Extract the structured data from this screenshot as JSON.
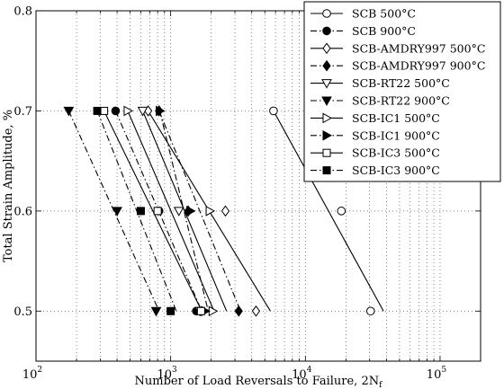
{
  "chart_data": {
    "type": "line",
    "x_scale": "log",
    "xlabel": "Number of Load Reversals to Failure, 2N",
    "xlabel_subscript": "f",
    "ylabel": "Total Strain Amplitude, %",
    "xlim": [
      100,
      200000
    ],
    "ylim": [
      0.45,
      0.8
    ],
    "x_ticks": [
      100,
      1000,
      10000,
      100000
    ],
    "x_tick_labels": [
      {
        "base": "10",
        "exp": "2"
      },
      {
        "base": "10",
        "exp": "3"
      },
      {
        "base": "10",
        "exp": "4"
      },
      {
        "base": "10",
        "exp": "5"
      }
    ],
    "y_ticks": [
      0.5,
      0.6,
      0.7,
      0.8
    ],
    "y_tick_labels": [
      "0.5",
      "0.6",
      "0.7",
      "0.8"
    ],
    "grid": "dotted, major and minor on x; major on y",
    "legend_position": "top-right",
    "series": [
      {
        "name": "SCB 500°C",
        "marker": "circle-open",
        "line": "solid",
        "points": [
          [
            5800,
            0.7
          ],
          [
            18500,
            0.6
          ],
          [
            30500,
            0.5
          ]
        ],
        "fit": [
          [
            5800,
            0.7
          ],
          [
            38000,
            0.5
          ]
        ]
      },
      {
        "name": "SCB 900°C",
        "marker": "circle-filled",
        "line": "dashdot",
        "points": [
          [
            390,
            0.7
          ],
          [
            820,
            0.6
          ],
          [
            1550,
            0.5
          ]
        ],
        "fit": [
          [
            390,
            0.7
          ],
          [
            1700,
            0.5
          ]
        ]
      },
      {
        "name": "SCB-AMDRY997 500°C",
        "marker": "diamond-open",
        "line": "solid",
        "points": [
          [
            680,
            0.7
          ],
          [
            2550,
            0.6
          ],
          [
            4300,
            0.5
          ]
        ],
        "fit": [
          [
            680,
            0.7
          ],
          [
            5500,
            0.5
          ]
        ]
      },
      {
        "name": "SCB-AMDRY997 900°C",
        "marker": "diamond-filled",
        "line": "dashdot",
        "points": [
          [
            820,
            0.7
          ],
          [
            1350,
            0.6
          ],
          [
            3200,
            0.5
          ]
        ],
        "fit": [
          [
            820,
            0.7
          ],
          [
            3300,
            0.5
          ]
        ]
      },
      {
        "name": "SCB-RT22 500°C",
        "marker": "triangle-down-open",
        "line": "solid",
        "points": [
          [
            620,
            0.7
          ],
          [
            1150,
            0.6
          ],
          [
            1650,
            0.5
          ]
        ],
        "fit": [
          [
            620,
            0.7
          ],
          [
            2600,
            0.5
          ]
        ]
      },
      {
        "name": "SCB-RT22 900°C",
        "marker": "triangle-down-filled",
        "line": "dashdot",
        "points": [
          [
            175,
            0.7
          ],
          [
            400,
            0.6
          ],
          [
            780,
            0.5
          ]
        ],
        "fit": [
          [
            175,
            0.7
          ],
          [
            820,
            0.5
          ]
        ]
      },
      {
        "name": "SCB-IC1 500°C",
        "marker": "triangle-right-open",
        "line": "solid",
        "points": [
          [
            480,
            0.7
          ],
          [
            1950,
            0.6
          ],
          [
            2050,
            0.5
          ]
        ],
        "fit": [
          [
            480,
            0.7
          ],
          [
            2100,
            0.5
          ]
        ]
      },
      {
        "name": "SCB-IC1 900°C",
        "marker": "triangle-right-filled",
        "line": "dashdot",
        "points": [
          [
            830,
            0.7
          ],
          [
            1400,
            0.6
          ],
          [
            1800,
            0.5
          ]
        ],
        "fit": [
          [
            830,
            0.7
          ],
          [
            1900,
            0.5
          ]
        ]
      },
      {
        "name": "SCB-IC3 500°C",
        "marker": "square-open",
        "line": "solid",
        "points": [
          [
            320,
            0.7
          ],
          [
            800,
            0.6
          ],
          [
            1680,
            0.5
          ]
        ],
        "fit": [
          [
            320,
            0.7
          ],
          [
            1700,
            0.5
          ]
        ]
      },
      {
        "name": "SCB-IC3 900°C",
        "marker": "square-filled",
        "line": "dashdot",
        "points": [
          [
            285,
            0.7
          ],
          [
            600,
            0.6
          ],
          [
            1000,
            0.5
          ]
        ],
        "fit": [
          [
            285,
            0.7
          ],
          [
            1100,
            0.5
          ]
        ]
      }
    ]
  }
}
